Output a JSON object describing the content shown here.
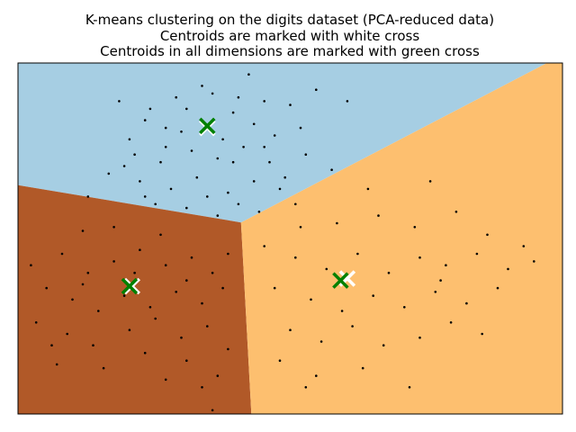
{
  "chart_data": {
    "type": "scatter",
    "title_lines": [
      "K-means clustering on the digits dataset (PCA-reduced data)",
      "Centroids are marked with white cross",
      "Centroids in all dimensions are marked with green cross"
    ],
    "xlabel": "",
    "ylabel": "",
    "xlim": [
      -5.15,
      5.35
    ],
    "ylim": [
      -4.6,
      4.6
    ],
    "axis_ticks": false,
    "grid": false,
    "legend": "none",
    "regions": [
      {
        "cluster": 0,
        "color": "#a6cee3",
        "polygon": [
          [
            -5.15,
            4.6
          ],
          [
            5.05,
            4.6
          ],
          [
            -0.85,
            0.42
          ],
          [
            -5.15,
            1.4
          ]
        ]
      },
      {
        "cluster": 1,
        "color": "#b15928",
        "polygon": [
          [
            -5.15,
            1.4
          ],
          [
            -0.85,
            0.42
          ],
          [
            -0.65,
            -4.6
          ],
          [
            -5.15,
            -4.6
          ]
        ]
      },
      {
        "cluster": 2,
        "color": "#fdbf6f",
        "polygon": [
          [
            -0.85,
            0.42
          ],
          [
            5.05,
            4.6
          ],
          [
            5.35,
            4.6
          ],
          [
            5.35,
            -4.6
          ],
          [
            -0.65,
            -4.6
          ]
        ]
      }
    ],
    "centroids_white": [
      {
        "x": -2.95,
        "y": -1.25
      },
      {
        "x": 1.2,
        "y": -1.05
      },
      {
        "x": -1.5,
        "y": 2.9
      }
    ],
    "centroids_green": [
      {
        "x": -3.0,
        "y": -1.25
      },
      {
        "x": 1.07,
        "y": -1.1
      },
      {
        "x": -1.5,
        "y": 2.95
      }
    ],
    "points": [
      [
        -3.2,
        3.6
      ],
      [
        -2.7,
        3.1
      ],
      [
        -2.3,
        2.9
      ],
      [
        -1.9,
        3.4
      ],
      [
        -1.4,
        3.8
      ],
      [
        -1.0,
        3.3
      ],
      [
        -0.6,
        3.0
      ],
      [
        -0.2,
        2.7
      ],
      [
        0.3,
        2.9
      ],
      [
        -2.9,
        2.2
      ],
      [
        -2.4,
        2.0
      ],
      [
        -1.8,
        2.3
      ],
      [
        -1.3,
        2.1
      ],
      [
        -0.8,
        2.4
      ],
      [
        -0.3,
        2.0
      ],
      [
        0.4,
        2.2
      ],
      [
        -3.4,
        1.7
      ],
      [
        -2.8,
        1.5
      ],
      [
        -2.2,
        1.3
      ],
      [
        -1.7,
        1.6
      ],
      [
        -1.1,
        1.2
      ],
      [
        -0.6,
        1.5
      ],
      [
        -0.1,
        1.3
      ],
      [
        -2.5,
        0.9
      ],
      [
        -1.9,
        0.8
      ],
      [
        -1.3,
        0.6
      ],
      [
        -0.9,
        0.9
      ],
      [
        -3.8,
        1.1
      ],
      [
        -2.1,
        3.7
      ],
      [
        -0.4,
        3.6
      ],
      [
        0.0,
        1.6
      ],
      [
        -1.6,
        4.0
      ],
      [
        1.2,
        3.6
      ],
      [
        0.6,
        3.9
      ],
      [
        -0.7,
        4.3
      ],
      [
        -2.6,
        3.4
      ],
      [
        -3.0,
        2.6
      ],
      [
        -1.2,
        2.6
      ],
      [
        -0.4,
        2.4
      ],
      [
        -2.0,
        2.8
      ],
      [
        0.9,
        1.8
      ],
      [
        -0.5,
        0.7
      ],
      [
        0.2,
        0.9
      ],
      [
        -3.1,
        1.9
      ],
      [
        -1.5,
        1.1
      ],
      [
        -2.7,
        1.1
      ],
      [
        -0.9,
        3.7
      ],
      [
        0.1,
        3.5
      ],
      [
        -2.3,
        2.4
      ],
      [
        -1.0,
        2.0
      ],
      [
        -4.3,
        -0.4
      ],
      [
        -3.8,
        -0.9
      ],
      [
        -3.3,
        -0.6
      ],
      [
        -2.8,
        -0.3
      ],
      [
        -2.3,
        -0.7
      ],
      [
        -1.8,
        -0.5
      ],
      [
        -1.4,
        -0.9
      ],
      [
        -1.1,
        -0.4
      ],
      [
        -4.6,
        -1.3
      ],
      [
        -4.1,
        -1.6
      ],
      [
        -3.6,
        -1.9
      ],
      [
        -3.1,
        -1.5
      ],
      [
        -2.6,
        -1.8
      ],
      [
        -2.1,
        -1.4
      ],
      [
        -1.6,
        -1.7
      ],
      [
        -1.2,
        -1.3
      ],
      [
        -4.8,
        -2.2
      ],
      [
        -4.2,
        -2.5
      ],
      [
        -3.7,
        -2.8
      ],
      [
        -3.0,
        -2.4
      ],
      [
        -2.5,
        -2.1
      ],
      [
        -2.0,
        -2.6
      ],
      [
        -1.5,
        -2.3
      ],
      [
        -1.1,
        -2.9
      ],
      [
        -4.4,
        -3.3
      ],
      [
        -3.5,
        -3.4
      ],
      [
        -2.7,
        -3.0
      ],
      [
        -1.9,
        -3.2
      ],
      [
        -1.3,
        -3.6
      ],
      [
        -1.6,
        -3.9
      ],
      [
        -3.9,
        0.2
      ],
      [
        -4.9,
        -0.7
      ],
      [
        -3.3,
        0.3
      ],
      [
        -2.4,
        0.1
      ],
      [
        -1.9,
        -1.1
      ],
      [
        -2.9,
        -0.9
      ],
      [
        -3.9,
        -1.2
      ],
      [
        -4.5,
        -2.8
      ],
      [
        -2.3,
        -3.7
      ],
      [
        -1.4,
        -4.5
      ],
      [
        -0.4,
        -0.2
      ],
      [
        0.2,
        -0.5
      ],
      [
        0.8,
        -0.8
      ],
      [
        1.4,
        -0.4
      ],
      [
        2.0,
        -0.9
      ],
      [
        2.6,
        -0.5
      ],
      [
        3.1,
        -0.7
      ],
      [
        3.7,
        -0.4
      ],
      [
        4.3,
        -0.8
      ],
      [
        -0.2,
        -1.3
      ],
      [
        0.5,
        -1.6
      ],
      [
        1.1,
        -1.9
      ],
      [
        1.7,
        -1.5
      ],
      [
        2.3,
        -1.8
      ],
      [
        2.9,
        -1.4
      ],
      [
        3.5,
        -1.7
      ],
      [
        4.1,
        -1.3
      ],
      [
        4.8,
        -0.6
      ],
      [
        0.1,
        -2.4
      ],
      [
        0.7,
        -2.7
      ],
      [
        1.3,
        -2.3
      ],
      [
        1.9,
        -2.8
      ],
      [
        2.6,
        -2.6
      ],
      [
        3.2,
        -2.2
      ],
      [
        3.8,
        -2.5
      ],
      [
        -0.1,
        -3.2
      ],
      [
        0.6,
        -3.6
      ],
      [
        1.5,
        -3.4
      ],
      [
        2.4,
        -3.9
      ],
      [
        1.0,
        0.4
      ],
      [
        1.8,
        0.6
      ],
      [
        2.5,
        0.3
      ],
      [
        3.3,
        0.7
      ],
      [
        3.9,
        0.1
      ],
      [
        0.3,
        0.3
      ],
      [
        4.6,
        -0.2
      ],
      [
        2.8,
        1.5
      ],
      [
        1.6,
        1.3
      ],
      [
        0.4,
        -3.9
      ],
      [
        3.0,
        -1.1
      ]
    ]
  }
}
